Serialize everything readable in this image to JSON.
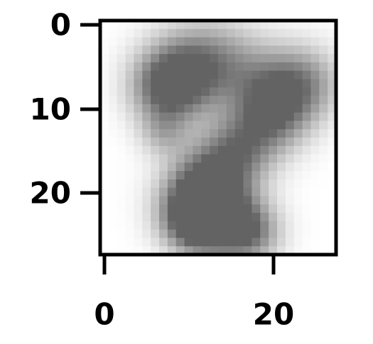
{
  "chart_data": {
    "type": "heatmap",
    "title": "",
    "xlabel": "",
    "ylabel": "",
    "colormap": "gray_r",
    "colors": {
      "axis": "#000000",
      "background": "#ffffff"
    },
    "grid": false,
    "legend": "none",
    "xlim": [
      -0.5,
      27.5
    ],
    "ylim": [
      27.5,
      -0.5
    ],
    "x_ticks": [
      0,
      20
    ],
    "y_ticks": [
      0,
      10,
      20
    ],
    "x_tick_labels": [
      "0",
      "20"
    ],
    "y_tick_labels": [
      "0",
      "10",
      "20"
    ],
    "image_size": [
      28,
      28
    ],
    "intensity_blobs": [
      {
        "x": 7.5,
        "y": 7.5,
        "radius": 3.0,
        "intensity": 0.75
      },
      {
        "x": 10.0,
        "y": 5.0,
        "radius": 3.5,
        "intensity": 0.45
      },
      {
        "x": 14.0,
        "y": 4.5,
        "radius": 3.5,
        "intensity": 0.35
      },
      {
        "x": 20.0,
        "y": 7.5,
        "radius": 3.5,
        "intensity": 0.45
      },
      {
        "x": 24.0,
        "y": 7.0,
        "radius": 3.0,
        "intensity": 0.4
      },
      {
        "x": 20.0,
        "y": 11.0,
        "radius": 3.0,
        "intensity": 0.5
      },
      {
        "x": 16.0,
        "y": 15.0,
        "radius": 3.0,
        "intensity": 0.55
      },
      {
        "x": 12.5,
        "y": 18.5,
        "radius": 3.0,
        "intensity": 0.6
      },
      {
        "x": 10.5,
        "y": 21.5,
        "radius": 3.0,
        "intensity": 0.6
      },
      {
        "x": 10.5,
        "y": 24.0,
        "radius": 2.5,
        "intensity": 0.55
      },
      {
        "x": 14.5,
        "y": 23.5,
        "radius": 3.0,
        "intensity": 0.7
      },
      {
        "x": 17.5,
        "y": 25.0,
        "radius": 2.5,
        "intensity": 0.45
      },
      {
        "x": 7.0,
        "y": 13.0,
        "radius": 2.0,
        "intensity": 0.3
      }
    ]
  }
}
